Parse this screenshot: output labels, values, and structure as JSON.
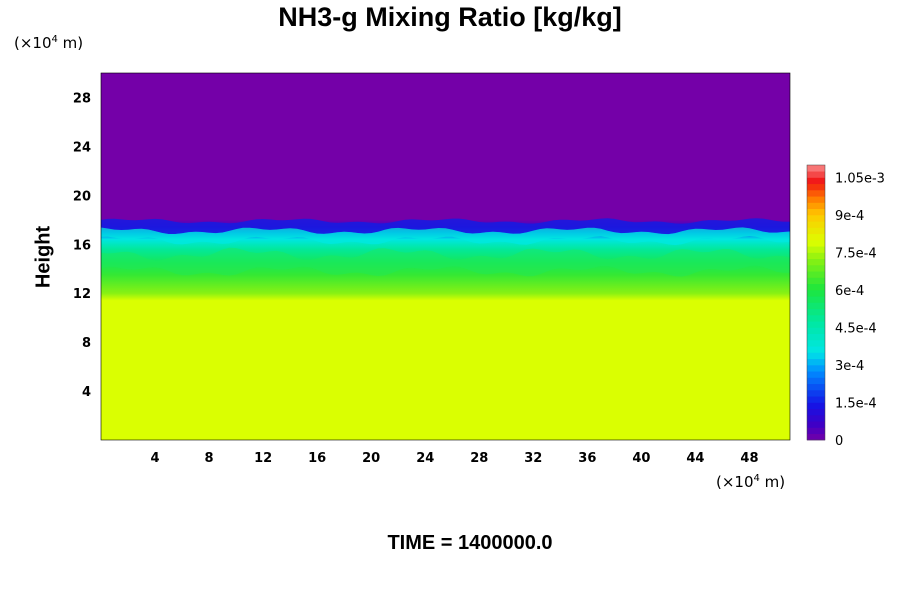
{
  "chart_data": {
    "type": "heatmap",
    "title": "NH3-g Mixing Ratio [kg/kg]",
    "ylabel": "Height",
    "y_unit": "(×10",
    "x_unit": "(×10",
    "unit_exp": "4",
    "unit_tail": " m)",
    "xlim": [
      0,
      51
    ],
    "ylim": [
      0,
      30
    ],
    "x_ticks": [
      "4",
      "8",
      "12",
      "16",
      "20",
      "24",
      "28",
      "32",
      "36",
      "40",
      "44",
      "48"
    ],
    "y_ticks": [
      "4",
      "8",
      "12",
      "16",
      "20",
      "24",
      "28"
    ],
    "colorbar": {
      "range": [
        0,
        0.0011
      ],
      "tick_labels": [
        "0",
        "1.5e-4",
        "3e-4",
        "4.5e-4",
        "6e-4",
        "7.5e-4",
        "9e-4",
        "1.05e-3"
      ],
      "tick_values": [
        0,
        0.00015,
        0.0003,
        0.00045,
        0.0006,
        0.00075,
        0.0009,
        0.00105
      ]
    },
    "vertical_profile": [
      {
        "height": 0,
        "value": 0.00079
      },
      {
        "height": 11.4,
        "value": 0.00079
      },
      {
        "height": 12.0,
        "value": 0.00072
      },
      {
        "height": 13.5,
        "value": 0.00063
      },
      {
        "height": 14.5,
        "value": 0.00057
      },
      {
        "height": 15.6,
        "value": 0.00048
      },
      {
        "height": 16.4,
        "value": 0.00036
      },
      {
        "height": 17.0,
        "value": 0.00022
      },
      {
        "height": 17.4,
        "value": 8e-05
      },
      {
        "height": 18.0,
        "value": 0.0
      },
      {
        "height": 30,
        "value": 0.0
      }
    ],
    "colors": {
      "upper_region": "#7400a8",
      "lower_region": "#dcff00",
      "transition_blue": "#1a1ae0",
      "transition_cyan": "#00e8e0",
      "transition_green": "#1ee85a"
    }
  },
  "footer": {
    "time_text": "TIME = 1400000.0"
  }
}
